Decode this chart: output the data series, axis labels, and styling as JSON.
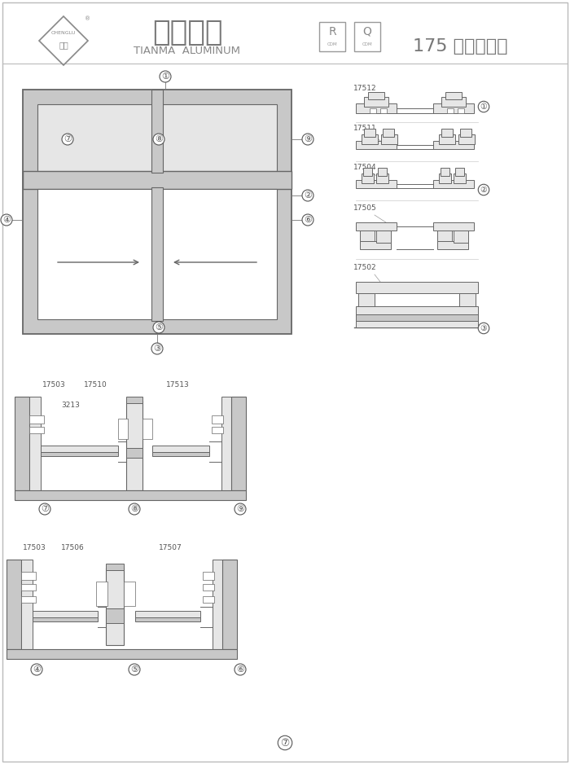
{
  "title_chinese": "天馬鋁材",
  "title_english": "TIANMA  ALUMINUM",
  "product_name": "175 系列橫拉窗",
  "bg_color": "#ffffff",
  "line_color": "#888888",
  "dark_line": "#666666",
  "fill_gray": "#c8c8c8",
  "light_gray": "#e6e6e6",
  "text_color": "#555555",
  "page_border": "#bbbbbb",
  "callout_1": "①",
  "callout_2": "②",
  "callout_3": "③",
  "callout_4": "④",
  "callout_5": "⑤",
  "callout_6": "⑥",
  "callout_7": "⑦",
  "callout_8": "⑧",
  "callout_9": "⑨"
}
